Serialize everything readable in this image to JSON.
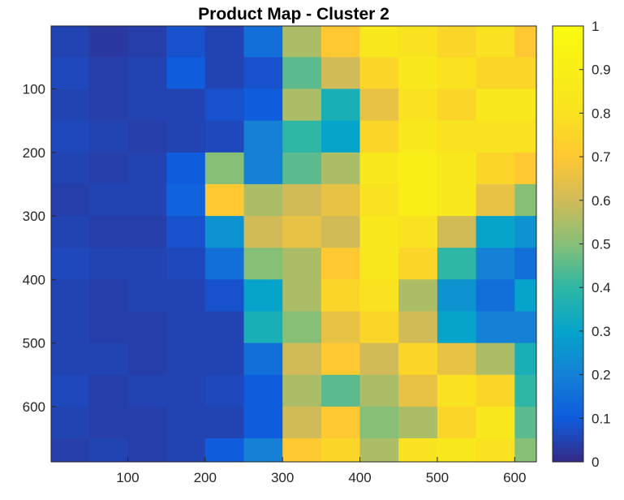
{
  "chart_data": {
    "type": "heatmap",
    "title": "Product Map - Cluster 2",
    "xlabel": "",
    "ylabel": "",
    "xlim": [
      1,
      628
    ],
    "ylim": [
      1,
      687
    ],
    "y_reversed": true,
    "xticks": [
      100,
      200,
      300,
      400,
      500,
      600
    ],
    "yticks": [
      100,
      200,
      300,
      400,
      500,
      600
    ],
    "clim": [
      0,
      1
    ],
    "colormap": "parula",
    "colorbar": {
      "ticks": [
        0,
        0.1,
        0.2,
        0.3,
        0.4,
        0.5,
        0.6,
        0.7,
        0.8,
        0.9,
        1
      ],
      "tick_labels": [
        "0",
        "0.1",
        "0.2",
        "0.3",
        "0.4",
        "0.5",
        "0.6",
        "0.7",
        "0.8",
        "0.9",
        "1"
      ],
      "placement": "right"
    },
    "grid_columns": [
      0,
      50,
      100,
      150,
      200,
      250,
      300,
      350,
      400,
      450,
      500,
      550,
      600
    ],
    "grid_rows": [
      0,
      50,
      100,
      150,
      200,
      250,
      300,
      350,
      400,
      450,
      500,
      550,
      600,
      650
    ],
    "values": [
      [
        0.05,
        0.03,
        0.04,
        0.08,
        0.05,
        0.15,
        0.55,
        0.7,
        0.85,
        0.8,
        0.75,
        0.8,
        0.7
      ],
      [
        0.06,
        0.04,
        0.05,
        0.1,
        0.05,
        0.08,
        0.45,
        0.6,
        0.75,
        0.85,
        0.8,
        0.75,
        0.75
      ],
      [
        0.05,
        0.04,
        0.05,
        0.05,
        0.08,
        0.1,
        0.55,
        0.35,
        0.65,
        0.8,
        0.75,
        0.85,
        0.85
      ],
      [
        0.06,
        0.05,
        0.04,
        0.05,
        0.06,
        0.2,
        0.4,
        0.3,
        0.75,
        0.85,
        0.8,
        0.8,
        0.8
      ],
      [
        0.05,
        0.04,
        0.05,
        0.1,
        0.5,
        0.2,
        0.45,
        0.55,
        0.85,
        0.9,
        0.85,
        0.75,
        0.7
      ],
      [
        0.04,
        0.05,
        0.05,
        0.12,
        0.7,
        0.55,
        0.6,
        0.65,
        0.8,
        0.9,
        0.85,
        0.65,
        0.5
      ],
      [
        0.05,
        0.04,
        0.04,
        0.08,
        0.25,
        0.6,
        0.65,
        0.6,
        0.85,
        0.8,
        0.6,
        0.3,
        0.25
      ],
      [
        0.06,
        0.05,
        0.05,
        0.06,
        0.15,
        0.5,
        0.55,
        0.7,
        0.85,
        0.75,
        0.4,
        0.2,
        0.15
      ],
      [
        0.05,
        0.04,
        0.05,
        0.05,
        0.08,
        0.3,
        0.55,
        0.75,
        0.8,
        0.55,
        0.25,
        0.15,
        0.3
      ],
      [
        0.05,
        0.04,
        0.04,
        0.05,
        0.05,
        0.35,
        0.5,
        0.65,
        0.75,
        0.6,
        0.3,
        0.2,
        0.2
      ],
      [
        0.05,
        0.05,
        0.04,
        0.05,
        0.05,
        0.15,
        0.6,
        0.7,
        0.6,
        0.75,
        0.65,
        0.55,
        0.35
      ],
      [
        0.06,
        0.04,
        0.05,
        0.05,
        0.06,
        0.1,
        0.55,
        0.45,
        0.55,
        0.65,
        0.8,
        0.75,
        0.4
      ],
      [
        0.05,
        0.04,
        0.04,
        0.05,
        0.05,
        0.1,
        0.6,
        0.7,
        0.5,
        0.55,
        0.75,
        0.85,
        0.45
      ],
      [
        0.04,
        0.05,
        0.04,
        0.05,
        0.1,
        0.2,
        0.7,
        0.75,
        0.55,
        0.8,
        0.85,
        0.8,
        0.5
      ]
    ]
  }
}
